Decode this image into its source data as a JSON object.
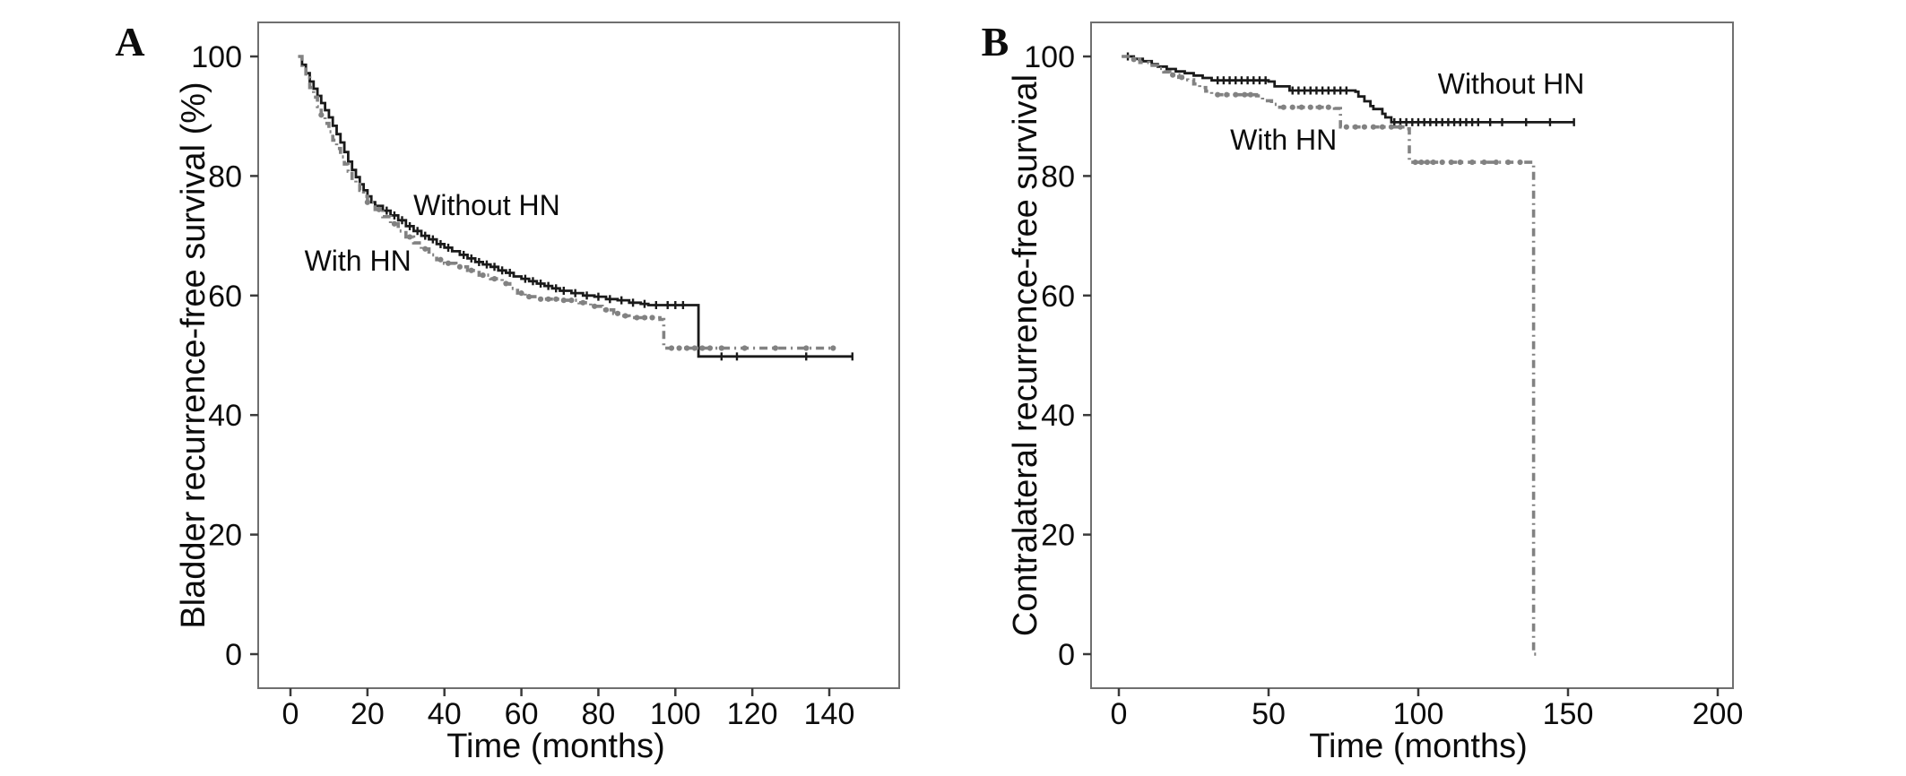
{
  "figure": {
    "background": "#ffffff",
    "frame_color": "#6f6f6f",
    "tick_color": "#3a3a3a",
    "text_color": "#0c0c0c"
  },
  "chart_data": [
    {
      "type": "line",
      "subtype": "kaplan-meier-step",
      "panel_label": "A",
      "xlabel": "Time (months)",
      "ylabel": "Bladder recurrence-free survival (%)",
      "xticks": [
        0,
        20,
        40,
        60,
        80,
        100,
        120,
        140
      ],
      "yticks": [
        0,
        20,
        40,
        60,
        80,
        100
      ],
      "xlim": [
        0,
        158
      ],
      "ylim": [
        0,
        100
      ],
      "grid": false,
      "legend_position": "inline-labels",
      "series": [
        {
          "name": "Without HN",
          "color": "#1a1a1a",
          "line_style": "solid",
          "censor_style": "tick",
          "label_anchor": [
            51,
            73.5
          ],
          "points": [
            [
              2,
              100
            ],
            [
              3,
              98.6
            ],
            [
              4,
              97.2
            ],
            [
              5,
              95.8
            ],
            [
              6,
              94.6
            ],
            [
              7,
              93.4
            ],
            [
              8,
              92.2
            ],
            [
              9,
              91
            ],
            [
              10,
              89.8
            ],
            [
              11,
              88.4
            ],
            [
              12,
              87
            ],
            [
              13,
              85.6
            ],
            [
              14,
              84
            ],
            [
              15,
              82.4
            ],
            [
              16,
              81
            ],
            [
              17,
              79.8
            ],
            [
              18,
              78.6
            ],
            [
              19,
              77.6
            ],
            [
              20,
              76.6
            ],
            [
              21,
              75.6
            ],
            [
              22,
              75
            ],
            [
              24,
              74.2
            ],
            [
              26,
              73.4
            ],
            [
              28,
              72.6
            ],
            [
              30,
              71.6
            ],
            [
              32,
              70.8
            ],
            [
              34,
              70
            ],
            [
              36,
              69.4
            ],
            [
              38,
              68.6
            ],
            [
              40,
              68
            ],
            [
              42,
              67.4
            ],
            [
              44,
              66.8
            ],
            [
              46,
              66.2
            ],
            [
              48,
              65.6
            ],
            [
              50,
              65.2
            ],
            [
              52,
              64.8
            ],
            [
              54,
              64.2
            ],
            [
              56,
              63.8
            ],
            [
              58,
              63.2
            ],
            [
              60,
              62.8
            ],
            [
              62,
              62.4
            ],
            [
              64,
              62
            ],
            [
              66,
              61.6
            ],
            [
              68,
              61.2
            ],
            [
              70,
              60.8
            ],
            [
              73,
              60.4
            ],
            [
              76,
              60
            ],
            [
              79,
              59.8
            ],
            [
              82,
              59.4
            ],
            [
              85,
              59.2
            ],
            [
              88,
              58.8
            ],
            [
              91,
              58.6
            ],
            [
              93,
              58.4
            ],
            [
              106,
              58.4
            ],
            [
              106,
              49.8
            ],
            [
              146,
              49.8
            ]
          ],
          "censor_times": [
            22,
            25,
            27,
            29,
            31,
            33,
            35,
            37,
            39,
            41,
            45,
            47,
            49,
            51,
            53,
            55,
            57,
            61,
            63,
            65,
            67,
            69,
            71,
            74,
            77,
            80,
            83,
            86,
            89,
            92,
            95,
            98,
            100,
            102,
            112,
            116,
            134,
            146
          ]
        },
        {
          "name": "With HN",
          "color": "#828282",
          "line_style": "dash-dot",
          "censor_style": "circle",
          "label_anchor": [
            17.5,
            64.2
          ],
          "points": [
            [
              2,
              100
            ],
            [
              3,
              98.2
            ],
            [
              4,
              96.4
            ],
            [
              5,
              94.8
            ],
            [
              6,
              93.2
            ],
            [
              7,
              91.6
            ],
            [
              8,
              90.2
            ],
            [
              9,
              88.8
            ],
            [
              10,
              87.4
            ],
            [
              11,
              86
            ],
            [
              12,
              84.6
            ],
            [
              13,
              83.2
            ],
            [
              14,
              82
            ],
            [
              15,
              80.8
            ],
            [
              16,
              79.6
            ],
            [
              17,
              78.6
            ],
            [
              18,
              77.6
            ],
            [
              19,
              76.6
            ],
            [
              20,
              75.6
            ],
            [
              22,
              74.4
            ],
            [
              24,
              73.2
            ],
            [
              26,
              72
            ],
            [
              28,
              70.8
            ],
            [
              30,
              69.8
            ],
            [
              32,
              68.8
            ],
            [
              34,
              67.8
            ],
            [
              36,
              66.8
            ],
            [
              38,
              66
            ],
            [
              40,
              65.4
            ],
            [
              43,
              64.8
            ],
            [
              46,
              64.2
            ],
            [
              49,
              63.4
            ],
            [
              52,
              62.8
            ],
            [
              55,
              62
            ],
            [
              57,
              61.2
            ],
            [
              59,
              60.4
            ],
            [
              61,
              59.8
            ],
            [
              64,
              59.4
            ],
            [
              70,
              59.2
            ],
            [
              75,
              58.8
            ],
            [
              78,
              58.2
            ],
            [
              81,
              57.6
            ],
            [
              84,
              57
            ],
            [
              86,
              56.6
            ],
            [
              88,
              56.3
            ],
            [
              96,
              56
            ],
            [
              97,
              51.2
            ],
            [
              141,
              51.2
            ]
          ],
          "censor_times": [
            8,
            20,
            23,
            27,
            31,
            35,
            39,
            41,
            44,
            47,
            50,
            53,
            56,
            60,
            62,
            65,
            67,
            69,
            71,
            73,
            76,
            79,
            82,
            85,
            87,
            90,
            92,
            94,
            99,
            101,
            103,
            105,
            107,
            109,
            112,
            118,
            126,
            134,
            141
          ]
        }
      ]
    },
    {
      "type": "line",
      "subtype": "kaplan-meier-step",
      "panel_label": "B",
      "xlabel": "Time (months)",
      "ylabel": "Contralateral recurrence-free survival",
      "xticks": [
        0,
        50,
        100,
        150,
        200
      ],
      "yticks": [
        0,
        20,
        40,
        60,
        80,
        100
      ],
      "xlim": [
        0,
        205
      ],
      "ylim": [
        0,
        100
      ],
      "grid": false,
      "legend_position": "inline-labels",
      "series": [
        {
          "name": "Without HN",
          "color": "#1a1a1a",
          "line_style": "solid",
          "censor_style": "tick",
          "label_anchor": [
            131,
            93.8
          ],
          "points": [
            [
              1,
              100
            ],
            [
              5,
              99.6
            ],
            [
              8,
              99.2
            ],
            [
              11,
              98.7
            ],
            [
              13,
              98.3
            ],
            [
              16,
              97.9
            ],
            [
              19,
              97.5
            ],
            [
              22,
              97.2
            ],
            [
              25,
              96.8
            ],
            [
              28,
              96.4
            ],
            [
              31,
              96
            ],
            [
              50,
              95.8
            ],
            [
              52,
              95
            ],
            [
              57,
              94.3
            ],
            [
              79,
              94.1
            ],
            [
              80,
              93.3
            ],
            [
              82,
              92.5
            ],
            [
              84,
              91.7
            ],
            [
              85,
              91.2
            ],
            [
              88,
              90.4
            ],
            [
              89,
              89.8
            ],
            [
              91,
              89
            ],
            [
              152,
              89
            ]
          ],
          "censor_times": [
            3,
            33,
            35,
            37,
            39,
            41,
            43,
            45,
            47,
            49,
            58,
            60,
            62,
            64,
            66,
            68,
            70,
            72,
            74,
            76,
            92,
            94,
            96,
            98,
            100,
            102,
            104,
            106,
            108,
            110,
            112,
            114,
            116,
            118,
            120,
            124,
            128,
            136,
            144,
            152
          ]
        },
        {
          "name": "With HN",
          "color": "#828282",
          "line_style": "dash-dot",
          "censor_style": "circle",
          "label_anchor": [
            55,
            84.4
          ],
          "points": [
            [
              1,
              100
            ],
            [
              4,
              99.5
            ],
            [
              7,
              99
            ],
            [
              10,
              98.5
            ],
            [
              13,
              98
            ],
            [
              15,
              97.4
            ],
            [
              17,
              96.9
            ],
            [
              20,
              96.5
            ],
            [
              23,
              96.1
            ],
            [
              25,
              95.4
            ],
            [
              27,
              94.8
            ],
            [
              29,
              94.2
            ],
            [
              31,
              93.6
            ],
            [
              46,
              93.4
            ],
            [
              48,
              92.6
            ],
            [
              51,
              92
            ],
            [
              53,
              91.5
            ],
            [
              72,
              91.3
            ],
            [
              74,
              88.2
            ],
            [
              96,
              87.9
            ],
            [
              97,
              82.3
            ],
            [
              138,
              82.3
            ],
            [
              138.5,
              0
            ],
            [
              139.5,
              0
            ]
          ],
          "censor_times": [
            5,
            18,
            21,
            33,
            36,
            39,
            42,
            44,
            55,
            58,
            61,
            64,
            67,
            70,
            76,
            79,
            82,
            85,
            88,
            91,
            94,
            99,
            101,
            103,
            105,
            108,
            111,
            114,
            118,
            122,
            126,
            130,
            134
          ]
        }
      ]
    }
  ]
}
